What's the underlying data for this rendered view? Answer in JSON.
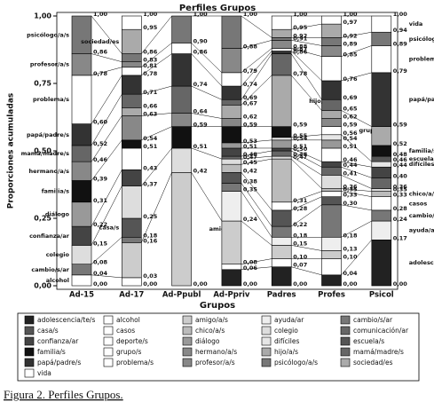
{
  "chart_data": {
    "type": "stacked_bar",
    "title": "Perfiles Grupos",
    "x_label": "Grupos",
    "y_label": "Proporciones acumuladas",
    "categories": [
      "Ad-15",
      "Ad-17",
      "Ad-Ppubl",
      "Ad-Ppriv",
      "Padres",
      "Profes",
      "Psicol"
    ],
    "ylim": [
      0,
      1
    ],
    "yticks": [
      {
        "value": 0,
        "label": "0,00"
      },
      {
        "value": 0.25,
        "label": "0,25"
      },
      {
        "value": 0.5,
        "label": "0,50"
      },
      {
        "value": 0.75,
        "label": "0,75"
      },
      {
        "value": 1,
        "label": "1,00"
      }
    ],
    "series": [
      {
        "name": "adolescencia/te/s",
        "color": "#222222",
        "values": [
          0,
          0,
          0,
          0.06,
          0.07,
          0.04,
          0.17
        ]
      },
      {
        "name": "alcohol",
        "color": "#ffffff",
        "values": [
          0.04,
          0.03,
          0,
          0.02,
          0.03,
          0.06,
          0
        ]
      },
      {
        "name": "amigo/a/s",
        "color": "#cccccc",
        "values": [
          0,
          0.13,
          0.42,
          0.16,
          0.05,
          0.03,
          0
        ]
      },
      {
        "name": "ayuda/ar",
        "color": "#eeeeee",
        "values": [
          0,
          0,
          0,
          0.11,
          0.03,
          0.05,
          0.07
        ]
      },
      {
        "name": "cambio/s/ar",
        "color": "#777777",
        "values": [
          0.04,
          0.02,
          0,
          0.03,
          0.04,
          0.12,
          0.04
        ]
      },
      {
        "name": "casa/s",
        "color": "#555555",
        "values": [
          0,
          0.07,
          0,
          0.04,
          0.06,
          0.03,
          0
        ]
      },
      {
        "name": "casos",
        "color": "#ffffff",
        "values": [
          0,
          0,
          0,
          0,
          0.03,
          0.02,
          0.05
        ]
      },
      {
        "name": "chico/a/s",
        "color": "#bbbbbb",
        "values": [
          0,
          0,
          0,
          0.03,
          0.16,
          0.01,
          0.02
        ]
      },
      {
        "name": "colegio",
        "color": "#dddddd",
        "values": [
          0.07,
          0.12,
          0.09,
          0.02,
          0.01,
          0.05,
          0.01
        ]
      },
      {
        "name": "comunicación/ar",
        "color": "#666666",
        "values": [
          0,
          0,
          0,
          0.01,
          0.02,
          0.03,
          0.04
        ]
      },
      {
        "name": "confianza/ar",
        "color": "#444444",
        "values": [
          0.07,
          0.06,
          0,
          0.03,
          0.01,
          0.02,
          0.04
        ]
      },
      {
        "name": "deporte/s",
        "color": "#ffffff",
        "values": [
          0,
          0.08,
          0,
          0,
          0,
          0.05,
          0
        ]
      },
      {
        "name": "diálogo",
        "color": "#999999",
        "values": [
          0.09,
          0,
          0,
          0.02,
          0.03,
          0.03,
          0
        ]
      },
      {
        "name": "difíciles",
        "color": "#e6e6e6",
        "values": [
          0,
          0,
          0,
          0,
          0.01,
          0.02,
          0.02
        ]
      },
      {
        "name": "escuela/s",
        "color": "#555555",
        "values": [
          0,
          0,
          0,
          0,
          0,
          0,
          0.02
        ]
      },
      {
        "name": "familia/s",
        "color": "#111111",
        "values": [
          0.08,
          0.03,
          0.08,
          0.06,
          0.04,
          0,
          0.04
        ]
      },
      {
        "name": "grupo/s",
        "color": "#ffffff",
        "values": [
          0,
          0,
          0,
          0,
          0,
          0.03,
          0
        ]
      },
      {
        "name": "hermano/a/s",
        "color": "#888888",
        "values": [
          0.07,
          0.09,
          0.05,
          0.03,
          0,
          0.03,
          0
        ]
      },
      {
        "name": "hijo/a/s",
        "color": "#aaaaaa",
        "values": [
          0,
          0.03,
          0,
          0.05,
          0.19,
          0.03,
          0.07
        ]
      },
      {
        "name": "mamá/madre/s",
        "color": "#666666",
        "values": [
          0.06,
          0.05,
          0.1,
          0.02,
          0.08,
          0.04,
          0
        ]
      },
      {
        "name": "papá/padre/s",
        "color": "#333333",
        "values": [
          0.08,
          0.07,
          0.12,
          0.05,
          0.01,
          0.07,
          0.2
        ]
      },
      {
        "name": "problema/s",
        "color": "#ffffff",
        "values": [
          0.18,
          0.03,
          0.04,
          0.05,
          0.01,
          0.09,
          0.1
        ]
      },
      {
        "name": "profesor/a/s",
        "color": "#888888",
        "values": [
          0.08,
          0.02,
          0,
          0.09,
          0.03,
          0.04,
          0
        ]
      },
      {
        "name": "psicólogo/a/s",
        "color": "#777777",
        "values": [
          0.14,
          0.03,
          0.1,
          0.12,
          0.01,
          0.03,
          0.05
        ]
      },
      {
        "name": "sociedad/es",
        "color": "#aaaaaa",
        "values": [
          0,
          0.09,
          0,
          0,
          0.03,
          0.05,
          0
        ]
      },
      {
        "name": "vida",
        "color": "#ffffff",
        "values": [
          0,
          0.05,
          0,
          0,
          0.05,
          0.03,
          0.06
        ]
      }
    ],
    "cumulative_labels": [
      [
        {
          "value": 0,
          "label": "0,00"
        },
        {
          "value": 0.04,
          "label": "0,04"
        },
        {
          "value": 0.08,
          "label": "0,08"
        },
        {
          "value": 0.15,
          "label": "0,15"
        },
        {
          "value": 0.22,
          "label": "0,22"
        },
        {
          "value": 0.31,
          "label": "0,31"
        },
        {
          "value": 0.39,
          "label": "0,39"
        },
        {
          "value": 0.46,
          "label": "0,46"
        },
        {
          "value": 0.52,
          "label": "0,52"
        },
        {
          "value": 0.6,
          "label": "0,60"
        },
        {
          "value": 0.78,
          "label": "0,78"
        },
        {
          "value": 0.86,
          "label": "0,86"
        },
        {
          "value": 1,
          "label": "1,00"
        }
      ],
      [
        {
          "value": 0,
          "label": "0,00"
        },
        {
          "value": 0.03,
          "label": "0,03"
        },
        {
          "value": 0.16,
          "label": "0,16"
        },
        {
          "value": 0.18,
          "label": "0,18"
        },
        {
          "value": 0.25,
          "label": "0,25"
        },
        {
          "value": 0.37,
          "label": "0,37"
        },
        {
          "value": 0.43,
          "label": "0,43"
        },
        {
          "value": 0.51,
          "label": "0,51"
        },
        {
          "value": 0.54,
          "label": "0,54"
        },
        {
          "value": 0.63,
          "label": "0,63"
        },
        {
          "value": 0.66,
          "label": "0,66"
        },
        {
          "value": 0.71,
          "label": "0,71"
        },
        {
          "value": 0.78,
          "label": "0,78"
        },
        {
          "value": 0.81,
          "label": "0,81"
        },
        {
          "value": 0.83,
          "label": "0,83"
        },
        {
          "value": 0.86,
          "label": "0,86"
        },
        {
          "value": 0.95,
          "label": "0,95"
        },
        {
          "value": 1,
          "label": "1,00"
        }
      ],
      [
        {
          "value": 0,
          "label": "0,00"
        },
        {
          "value": 0.42,
          "label": "0,42"
        },
        {
          "value": 0.51,
          "label": "0,51"
        },
        {
          "value": 0.59,
          "label": "0,59"
        },
        {
          "value": 0.64,
          "label": "0,64"
        },
        {
          "value": 0.74,
          "label": "0,74"
        },
        {
          "value": 0.86,
          "label": "0,86"
        },
        {
          "value": 0.9,
          "label": "0,90"
        },
        {
          "value": 1,
          "label": "1,00"
        }
      ],
      [
        {
          "value": 0,
          "label": "0,00"
        },
        {
          "value": 0.06,
          "label": "0,06"
        },
        {
          "value": 0.08,
          "label": "0,08"
        },
        {
          "value": 0.24,
          "label": "0,24"
        },
        {
          "value": 0.35,
          "label": "0,35"
        },
        {
          "value": 0.38,
          "label": "0,38"
        },
        {
          "value": 0.42,
          "label": "0,42"
        },
        {
          "value": 0.45,
          "label": "0,45"
        },
        {
          "value": 0.47,
          "label": "0,47"
        },
        {
          "value": 0.48,
          "label": "0,48"
        },
        {
          "value": 0.51,
          "label": "0,51"
        },
        {
          "value": 0.53,
          "label": "0,53"
        },
        {
          "value": 0.59,
          "label": "0,59"
        },
        {
          "value": 0.62,
          "label": "0,62"
        },
        {
          "value": 0.67,
          "label": "0,67"
        },
        {
          "value": 0.69,
          "label": "0,69"
        },
        {
          "value": 0.74,
          "label": "0,74"
        },
        {
          "value": 0.79,
          "label": "0,79"
        },
        {
          "value": 0.88,
          "label": "0,88"
        },
        {
          "value": 1,
          "label": "1,00"
        }
      ],
      [
        {
          "value": 0,
          "label": "0,00"
        },
        {
          "value": 0.07,
          "label": "0,07"
        },
        {
          "value": 0.1,
          "label": "0,10"
        },
        {
          "value": 0.15,
          "label": "0,15"
        },
        {
          "value": 0.18,
          "label": "0,18"
        },
        {
          "value": 0.22,
          "label": "0,22"
        },
        {
          "value": 0.28,
          "label": "0,28"
        },
        {
          "value": 0.31,
          "label": "0,31"
        },
        {
          "value": 0.47,
          "label": "0,47"
        },
        {
          "value": 0.48,
          "label": "0,48"
        },
        {
          "value": 0.5,
          "label": "0,50"
        },
        {
          "value": 0.51,
          "label": "0,51"
        },
        {
          "value": 0.54,
          "label": "0,54"
        },
        {
          "value": 0.55,
          "label": "0,55"
        },
        {
          "value": 0.59,
          "label": "0,59"
        },
        {
          "value": 0.78,
          "label": "0,78"
        },
        {
          "value": 0.86,
          "label": "0,86"
        },
        {
          "value": 0.87,
          "label": "0,87"
        },
        {
          "value": 0.88,
          "label": "0,88"
        },
        {
          "value": 0.91,
          "label": "0,91"
        },
        {
          "value": 0.92,
          "label": "0,92"
        },
        {
          "value": 0.95,
          "label": "0,95"
        },
        {
          "value": 1,
          "label": "1,00"
        }
      ],
      [
        {
          "value": 0,
          "label": "0,00"
        },
        {
          "value": 0.04,
          "label": "0,04"
        },
        {
          "value": 0.1,
          "label": "0,10"
        },
        {
          "value": 0.13,
          "label": "0,13"
        },
        {
          "value": 0.18,
          "label": "0,18"
        },
        {
          "value": 0.3,
          "label": "0,30"
        },
        {
          "value": 0.33,
          "label": "0,33"
        },
        {
          "value": 0.35,
          "label": "0,35"
        },
        {
          "value": 0.36,
          "label": "0,36"
        },
        {
          "value": 0.41,
          "label": "0,41"
        },
        {
          "value": 0.44,
          "label": "0,44"
        },
        {
          "value": 0.46,
          "label": "0,46"
        },
        {
          "value": 0.51,
          "label": "0,51"
        },
        {
          "value": 0.54,
          "label": "0,54"
        },
        {
          "value": 0.56,
          "label": "0,56"
        },
        {
          "value": 0.59,
          "label": "0,59"
        },
        {
          "value": 0.62,
          "label": "0,62"
        },
        {
          "value": 0.65,
          "label": "0,65"
        },
        {
          "value": 0.69,
          "label": "0,69"
        },
        {
          "value": 0.76,
          "label": "0,76"
        },
        {
          "value": 0.85,
          "label": "0,85"
        },
        {
          "value": 0.89,
          "label": "0,89"
        },
        {
          "value": 0.92,
          "label": "0,92"
        },
        {
          "value": 0.97,
          "label": "0,97"
        },
        {
          "value": 1,
          "label": "1,00"
        }
      ],
      [
        {
          "value": 0,
          "label": "0,00"
        },
        {
          "value": 0.17,
          "label": "0,17"
        },
        {
          "value": 0.24,
          "label": "0,24"
        },
        {
          "value": 0.28,
          "label": "0,28"
        },
        {
          "value": 0.33,
          "label": "0,33"
        },
        {
          "value": 0.35,
          "label": "0,35"
        },
        {
          "value": 0.36,
          "label": "0,36"
        },
        {
          "value": 0.4,
          "label": "0,40"
        },
        {
          "value": 0.44,
          "label": "0,44"
        },
        {
          "value": 0.46,
          "label": "0,46"
        },
        {
          "value": 0.48,
          "label": "0,48"
        },
        {
          "value": 0.52,
          "label": "0,52"
        },
        {
          "value": 0.59,
          "label": "0,59"
        },
        {
          "value": 0.79,
          "label": "0,79"
        },
        {
          "value": 0.89,
          "label": "0,89"
        },
        {
          "value": 0.94,
          "label": "0,94"
        },
        {
          "value": 1,
          "label": "1,00"
        }
      ]
    ],
    "segment_labels": [
      [
        "alcohol",
        "cambio/s/ar",
        "colegio",
        "confianza/ar",
        "diálogo",
        "familia/s",
        "hermano/a/s",
        "mamá/madre/s",
        "papá/padre/s",
        "problema/s",
        "profesor/a/s",
        "psicólogo/a/s"
      ],
      [
        "casa/s",
        "sociedad/es"
      ],
      [
        "amigo/a/s"
      ],
      [],
      [
        "hijo/a/s"
      ],
      [
        "grupo/s"
      ],
      [
        "adolescencia/te/s",
        "ayuda/ar",
        "cambio/s/ar",
        "casos",
        "chico/a/s",
        "difíciles",
        "escuela/s",
        "familia/s",
        "papá/padre/s",
        "problema/s",
        "psicólogo/a/s",
        "vida"
      ]
    ]
  },
  "caption": "Figura 2. Perfiles Grupos."
}
